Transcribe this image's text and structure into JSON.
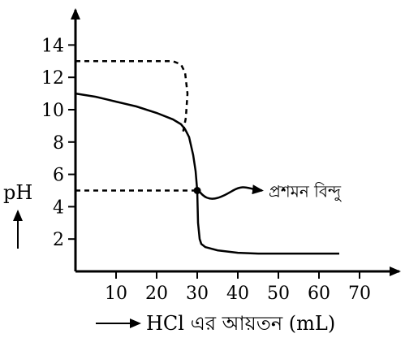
{
  "chart_data": {
    "type": "line",
    "title": "",
    "xlabel": "HCl এর আয়তন (mL)",
    "ylabel": "pH",
    "xlim": [
      0,
      80
    ],
    "ylim": [
      0,
      16
    ],
    "x_ticks": [
      10,
      20,
      30,
      40,
      50,
      60,
      70
    ],
    "y_ticks": [
      2,
      4,
      6,
      8,
      10,
      12,
      14
    ],
    "grid": false,
    "series": [
      {
        "style": "solid",
        "x": [
          0,
          5,
          10,
          15,
          20,
          24,
          26,
          27,
          28,
          29,
          29.6,
          30,
          30.2,
          30.6,
          31,
          32,
          35,
          40,
          45,
          50,
          55,
          60,
          65
        ],
        "y": [
          11,
          10.8,
          10.5,
          10.2,
          9.8,
          9.4,
          9.1,
          8.8,
          8.3,
          7.2,
          6.2,
          5.0,
          3.0,
          2.0,
          1.7,
          1.5,
          1.3,
          1.15,
          1.1,
          1.1,
          1.1,
          1.1,
          1.1
        ]
      },
      {
        "style": "dashed",
        "x": [
          0,
          10,
          20,
          24,
          26,
          27,
          27.6,
          27.2,
          26.5
        ],
        "y": [
          13,
          13,
          13,
          13,
          12.8,
          12.3,
          11,
          9.5,
          8.6
        ]
      }
    ],
    "equivalence_point": {
      "x": 30,
      "y": 5,
      "label": "প্রশমন বিন্দু"
    },
    "colors": {
      "line": "#000000",
      "background": "#ffffff"
    }
  }
}
